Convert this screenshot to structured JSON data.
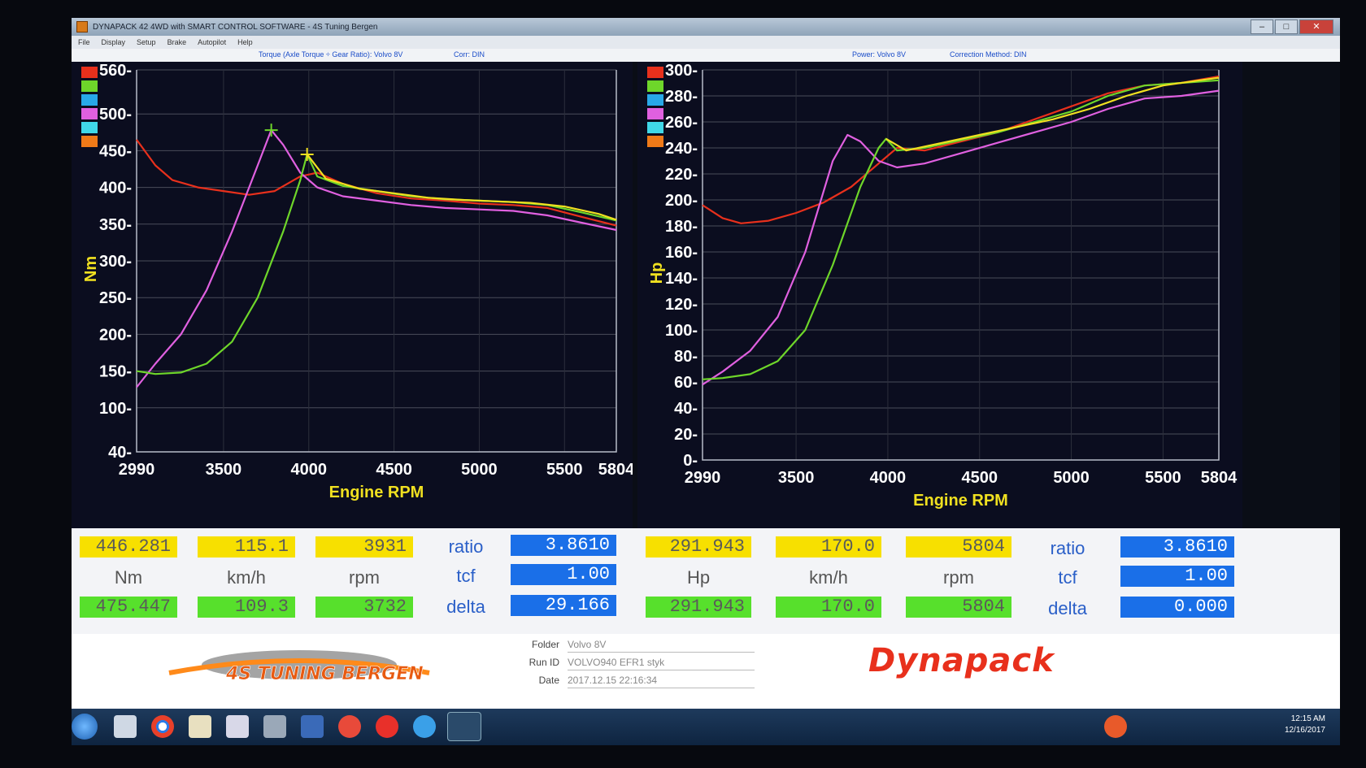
{
  "window": {
    "title": "DYNAPACK 42 4WD with SMART CONTROL SOFTWARE - 4S Tuning Bergen",
    "menu": [
      "File",
      "Display",
      "Setup",
      "Brake",
      "Autopilot",
      "Help"
    ]
  },
  "headers": {
    "left_title": "Torque (Axle Torque ÷ Gear Ratio): Volvo 8V",
    "left_corr": "Corr: DIN",
    "right_title": "Power: Volvo 8V",
    "right_corr": "Correction Method: DIN"
  },
  "legend_colors": [
    "#e8301c",
    "#6ed62a",
    "#28a8e8",
    "#e060e0",
    "#40d8e8",
    "#f07a18"
  ],
  "chart_data": [
    {
      "type": "line",
      "xlabel": "Engine RPM",
      "ylabel": "Nm",
      "x_ticks": [
        "2990",
        "3500",
        "4000",
        "4500",
        "5000",
        "5500",
        "5804"
      ],
      "y_ticks": [
        "40",
        "100",
        "150",
        "200",
        "250",
        "300",
        "350",
        "400",
        "450",
        "500",
        "560"
      ],
      "xlim": [
        2990,
        5804
      ],
      "ylim": [
        40,
        560
      ],
      "grid": true,
      "series": [
        {
          "color": "#e8301c",
          "x": [
            2990,
            3100,
            3200,
            3350,
            3500,
            3650,
            3800,
            3950,
            4050,
            4200,
            4400,
            4600,
            4800,
            5000,
            5200,
            5400,
            5600,
            5804
          ],
          "y": [
            465,
            430,
            410,
            400,
            395,
            390,
            395,
            415,
            420,
            405,
            392,
            385,
            382,
            378,
            376,
            372,
            360,
            348
          ]
        },
        {
          "color": "#e060e0",
          "x": [
            2990,
            3100,
            3250,
            3400,
            3550,
            3700,
            3780,
            3850,
            3950,
            4050,
            4200,
            4400,
            4600,
            4800,
            5000,
            5200,
            5400,
            5600,
            5804
          ],
          "y": [
            128,
            160,
            200,
            260,
            340,
            430,
            478,
            458,
            420,
            400,
            388,
            382,
            376,
            372,
            370,
            368,
            362,
            352,
            342
          ]
        },
        {
          "color": "#6ed62a",
          "x": [
            2990,
            3100,
            3250,
            3400,
            3550,
            3700,
            3850,
            3950,
            3990,
            4050,
            4200,
            4400,
            4600,
            4800,
            5000,
            5200,
            5400,
            5600,
            5804
          ],
          "y": [
            150,
            146,
            148,
            160,
            190,
            250,
            340,
            410,
            445,
            415,
            402,
            395,
            388,
            384,
            382,
            380,
            376,
            366,
            355
          ]
        },
        {
          "color": "#f0e020",
          "x": [
            3990,
            4100,
            4300,
            4500,
            4700,
            4900,
            5100,
            5300,
            5500,
            5700,
            5804
          ],
          "y": [
            445,
            412,
            398,
            392,
            386,
            383,
            381,
            379,
            374,
            364,
            356
          ]
        }
      ],
      "markers": [
        {
          "x": 3780,
          "y": 478,
          "color": "#6ed62a"
        },
        {
          "x": 3990,
          "y": 445,
          "color": "#f0e020"
        }
      ]
    },
    {
      "type": "line",
      "xlabel": "Engine RPM",
      "ylabel": "Hp",
      "x_ticks": [
        "2990",
        "3500",
        "4000",
        "4500",
        "5000",
        "5500",
        "5804"
      ],
      "y_ticks": [
        "0",
        "20",
        "40",
        "60",
        "80",
        "100",
        "120",
        "140",
        "160",
        "180",
        "200",
        "220",
        "240",
        "260",
        "280",
        "300"
      ],
      "xlim": [
        2990,
        5804
      ],
      "ylim": [
        0,
        300
      ],
      "grid": true,
      "series": [
        {
          "color": "#e8301c",
          "x": [
            2990,
            3100,
            3200,
            3350,
            3500,
            3650,
            3800,
            3950,
            4050,
            4200,
            4400,
            4600,
            4800,
            5000,
            5200,
            5400,
            5600,
            5804
          ],
          "y": [
            196,
            186,
            182,
            184,
            190,
            198,
            210,
            228,
            240,
            238,
            245,
            252,
            262,
            272,
            282,
            288,
            290,
            295
          ]
        },
        {
          "color": "#e060e0",
          "x": [
            2990,
            3100,
            3250,
            3400,
            3550,
            3700,
            3780,
            3850,
            3950,
            4050,
            4200,
            4400,
            4600,
            4800,
            5000,
            5200,
            5400,
            5600,
            5804
          ],
          "y": [
            58,
            68,
            84,
            110,
            160,
            230,
            250,
            245,
            230,
            225,
            228,
            236,
            244,
            252,
            260,
            270,
            278,
            280,
            284
          ]
        },
        {
          "color": "#6ed62a",
          "x": [
            2990,
            3100,
            3250,
            3400,
            3550,
            3700,
            3850,
            3950,
            3990,
            4050,
            4200,
            4400,
            4600,
            4800,
            5000,
            5200,
            5400,
            5600,
            5804
          ],
          "y": [
            62,
            63,
            66,
            76,
            100,
            150,
            210,
            240,
            247,
            238,
            240,
            246,
            252,
            260,
            268,
            280,
            288,
            290,
            292
          ]
        },
        {
          "color": "#f0e020",
          "x": [
            3990,
            4100,
            4300,
            4500,
            4700,
            4900,
            5100,
            5300,
            5500,
            5700,
            5804
          ],
          "y": [
            247,
            238,
            244,
            250,
            256,
            262,
            270,
            280,
            288,
            292,
            294
          ]
        }
      ],
      "markers": []
    }
  ],
  "readouts": {
    "left": {
      "yellow": [
        "446.281",
        "115.1",
        "3931"
      ],
      "units": [
        "Nm",
        "km/h",
        "rpm"
      ],
      "green": [
        "475.447",
        "109.3",
        "3732"
      ],
      "ratio_label": "ratio",
      "ratio": "3.8610",
      "tcf_label": "tcf",
      "tcf": "1.00",
      "delta_label": "delta",
      "delta": "29.166"
    },
    "right": {
      "yellow": [
        "291.943",
        "170.0",
        "5804"
      ],
      "units": [
        "Hp",
        "km/h",
        "rpm"
      ],
      "green": [
        "291.943",
        "170.0",
        "5804"
      ],
      "ratio_label": "ratio",
      "ratio": "3.8610",
      "tcf_label": "tcf",
      "tcf": "1.00",
      "delta_label": "delta",
      "delta": "0.000"
    }
  },
  "footer": {
    "logo_text": "4S TUNING BERGEN",
    "folder_label": "Folder",
    "folder_value": "Volvo 8V",
    "runid_label": "Run ID",
    "runid_value": "VOLVO940 EFR1 styk",
    "date_label": "Date",
    "date_value": "2017.12.15 22:16:34",
    "brand": "Dynapack"
  },
  "taskbar": {
    "time": "12:15 AM",
    "date": "12/16/2017",
    "icons": [
      "start-orb",
      "file-icon",
      "chrome-icon",
      "folder-icon",
      "media-icon",
      "notepad-icon",
      "network-icon",
      "app-icon",
      "shield-icon",
      "ie-icon",
      "dynapack-icon"
    ]
  }
}
